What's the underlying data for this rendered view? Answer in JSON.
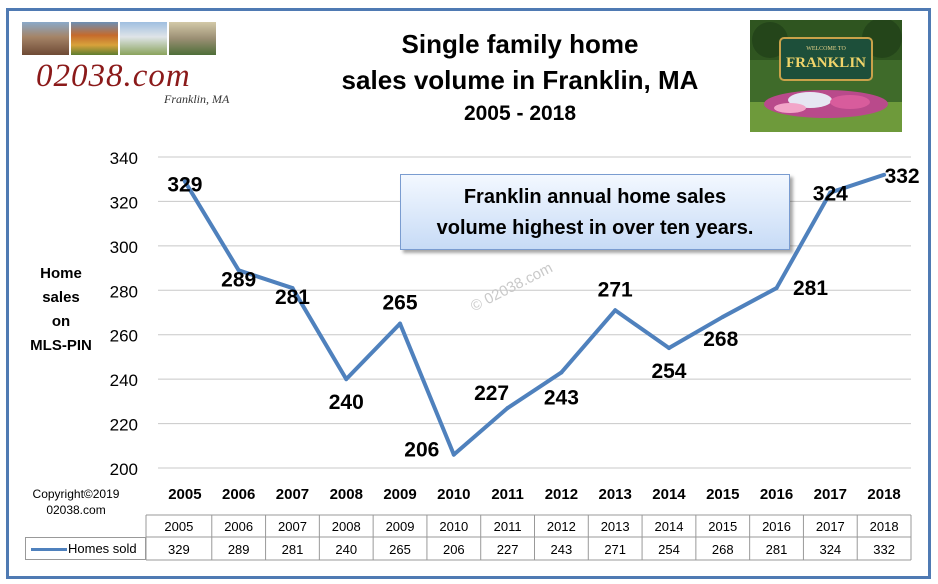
{
  "header": {
    "title_line1": "Single family home",
    "title_line2": "sales volume in Franklin, MA",
    "subtitle": "2005 - 2018"
  },
  "logo": {
    "text": "02038.com",
    "subtext": "Franklin, MA"
  },
  "photo": {
    "sign_small": "WELCOME TO",
    "sign_name": "FRANKLIN"
  },
  "callout": {
    "line1": "Franklin annual home sales",
    "line2": "volume highest in over ten years."
  },
  "axis": {
    "ylabel_lines": [
      "Home",
      "sales",
      "on",
      "MLS-PIN"
    ]
  },
  "copyright": {
    "line1": "Copyright©2019",
    "line2": "02038.com"
  },
  "watermark": "© 02038.com",
  "colors": {
    "series": "#4f81bd",
    "frame": "#4f7ab3",
    "grid": "#c8c8c8",
    "logo_text": "#8b1a1a"
  },
  "chart_data": {
    "type": "line",
    "title": "Single family home sales volume in Franklin, MA",
    "subtitle": "2005 - 2018",
    "ylabel": "Home sales on MLS-PIN",
    "xlabel": "",
    "categories": [
      "2005",
      "2006",
      "2007",
      "2008",
      "2009",
      "2010",
      "2011",
      "2012",
      "2013",
      "2014",
      "2015",
      "2016",
      "2017",
      "2018"
    ],
    "series": [
      {
        "name": "Homes sold",
        "values": [
          329,
          289,
          281,
          240,
          265,
          206,
          227,
          243,
          271,
          254,
          268,
          281,
          324,
          332
        ]
      }
    ],
    "ylim": [
      200,
      340
    ],
    "yticks": [
      200,
      220,
      240,
      260,
      280,
      300,
      320,
      340
    ],
    "grid": true,
    "data_table": true,
    "data_labels": true
  }
}
